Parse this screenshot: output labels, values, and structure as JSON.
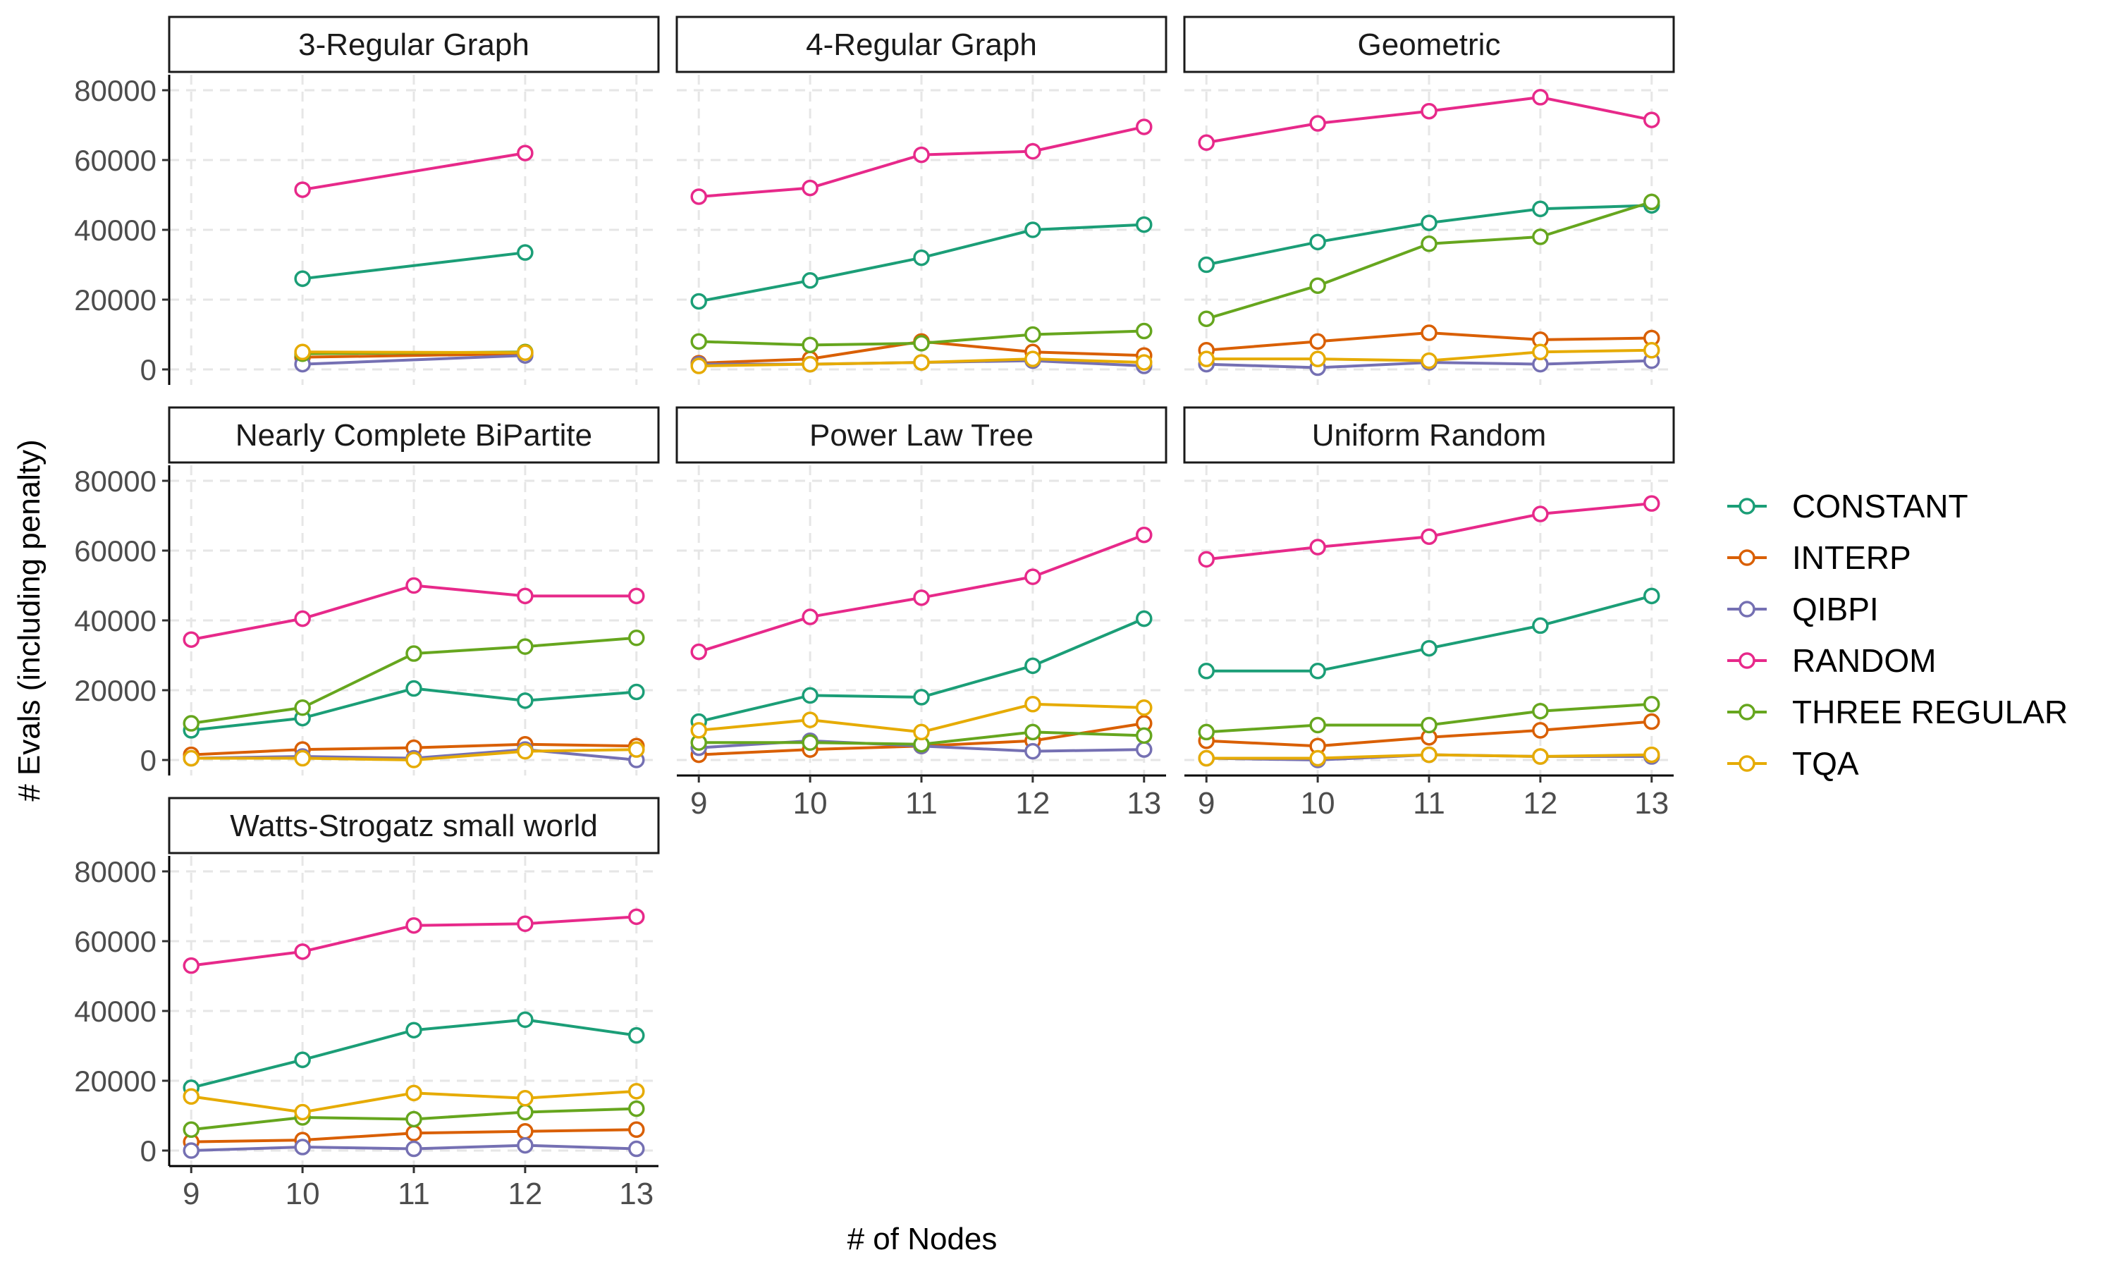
{
  "chart_data": {
    "type": "line",
    "xlabel": "# of Nodes",
    "ylabel": "# Evals (including penalty)",
    "x": [
      9,
      10,
      11,
      12,
      13
    ],
    "ylim": [
      0,
      80000
    ],
    "yticks": [
      0,
      20000,
      40000,
      60000,
      80000
    ],
    "ytick_labels": [
      "0",
      "20000",
      "40000",
      "60000",
      "80000"
    ],
    "xtick_labels": [
      "9",
      "10",
      "11",
      "12",
      "13"
    ],
    "grid": true,
    "legend_position": "right",
    "legend": [
      {
        "name": "CONSTANT",
        "color": "#1b9e77"
      },
      {
        "name": "INTERP",
        "color": "#d95f02"
      },
      {
        "name": "QIBPI",
        "color": "#7570b3"
      },
      {
        "name": "RANDOM",
        "color": "#e7298a"
      },
      {
        "name": "THREE REGULAR",
        "color": "#66a61e"
      },
      {
        "name": "TQA",
        "color": "#e6ab02"
      }
    ],
    "panels": [
      {
        "title": "3-Regular Graph",
        "series": [
          {
            "name": "CONSTANT",
            "values": [
              null,
              26000,
              null,
              33500,
              null
            ]
          },
          {
            "name": "INTERP",
            "values": [
              null,
              3500,
              null,
              4500,
              null
            ]
          },
          {
            "name": "QIBPI",
            "values": [
              null,
              1500,
              null,
              4000,
              null
            ]
          },
          {
            "name": "RANDOM",
            "values": [
              null,
              51500,
              null,
              62000,
              null
            ]
          },
          {
            "name": "THREE REGULAR",
            "values": [
              null,
              4500,
              null,
              5000,
              null
            ]
          },
          {
            "name": "TQA",
            "values": [
              null,
              5000,
              null,
              4800,
              null
            ]
          }
        ]
      },
      {
        "title": "4-Regular Graph",
        "series": [
          {
            "name": "CONSTANT",
            "values": [
              19500,
              25500,
              32000,
              40000,
              41500
            ]
          },
          {
            "name": "INTERP",
            "values": [
              1800,
              3000,
              8000,
              5000,
              4000
            ]
          },
          {
            "name": "QIBPI",
            "values": [
              1500,
              1500,
              2000,
              2500,
              1000
            ]
          },
          {
            "name": "RANDOM",
            "values": [
              49500,
              52000,
              61500,
              62500,
              69500
            ]
          },
          {
            "name": "THREE REGULAR",
            "values": [
              8000,
              7000,
              7500,
              10000,
              11000
            ]
          },
          {
            "name": "TQA",
            "values": [
              1000,
              1500,
              2000,
              3000,
              2000
            ]
          }
        ]
      },
      {
        "title": "Geometric",
        "series": [
          {
            "name": "CONSTANT",
            "values": [
              30000,
              36500,
              42000,
              46000,
              47000
            ]
          },
          {
            "name": "INTERP",
            "values": [
              5500,
              8000,
              10500,
              8500,
              9000
            ]
          },
          {
            "name": "QIBPI",
            "values": [
              1500,
              500,
              2000,
              1500,
              2500
            ]
          },
          {
            "name": "RANDOM",
            "values": [
              65000,
              70500,
              74000,
              78000,
              71500
            ]
          },
          {
            "name": "THREE REGULAR",
            "values": [
              14500,
              24000,
              36000,
              38000,
              48000
            ]
          },
          {
            "name": "TQA",
            "values": [
              3000,
              3000,
              2500,
              5000,
              5500
            ]
          }
        ]
      },
      {
        "title": "Nearly Complete BiPartite",
        "series": [
          {
            "name": "CONSTANT",
            "values": [
              8500,
              12000,
              20500,
              17000,
              19500
            ]
          },
          {
            "name": "INTERP",
            "values": [
              1500,
              3000,
              3500,
              4500,
              4000
            ]
          },
          {
            "name": "QIBPI",
            "values": [
              500,
              1000,
              500,
              3000,
              0
            ]
          },
          {
            "name": "RANDOM",
            "values": [
              34500,
              40500,
              50000,
              47000,
              47000
            ]
          },
          {
            "name": "THREE REGULAR",
            "values": [
              10500,
              15000,
              30500,
              32500,
              35000
            ]
          },
          {
            "name": "TQA",
            "values": [
              500,
              500,
              0,
              2500,
              3000
            ]
          }
        ]
      },
      {
        "title": "Power Law Tree",
        "series": [
          {
            "name": "CONSTANT",
            "values": [
              11000,
              18500,
              18000,
              27000,
              40500
            ]
          },
          {
            "name": "INTERP",
            "values": [
              1500,
              3000,
              4000,
              5500,
              10500
            ]
          },
          {
            "name": "QIBPI",
            "values": [
              3500,
              5500,
              4000,
              2500,
              3000
            ]
          },
          {
            "name": "RANDOM",
            "values": [
              31000,
              41000,
              46500,
              52500,
              64500
            ]
          },
          {
            "name": "THREE REGULAR",
            "values": [
              5000,
              5000,
              4500,
              8000,
              7000
            ]
          },
          {
            "name": "TQA",
            "values": [
              8500,
              11500,
              8000,
              16000,
              15000
            ]
          }
        ]
      },
      {
        "title": "Uniform Random",
        "series": [
          {
            "name": "CONSTANT",
            "values": [
              25500,
              25500,
              32000,
              38500,
              47000
            ]
          },
          {
            "name": "INTERP",
            "values": [
              5500,
              4000,
              6500,
              8500,
              11000
            ]
          },
          {
            "name": "QIBPI",
            "values": [
              500,
              0,
              1500,
              1000,
              1000
            ]
          },
          {
            "name": "RANDOM",
            "values": [
              57500,
              61000,
              64000,
              70500,
              73500
            ]
          },
          {
            "name": "THREE REGULAR",
            "values": [
              8000,
              10000,
              10000,
              14000,
              16000
            ]
          },
          {
            "name": "TQA",
            "values": [
              500,
              500,
              1500,
              1000,
              1500
            ]
          }
        ]
      },
      {
        "title": "Watts-Strogatz small world",
        "series": [
          {
            "name": "CONSTANT",
            "values": [
              18000,
              26000,
              34500,
              37500,
              33000
            ]
          },
          {
            "name": "INTERP",
            "values": [
              2500,
              3000,
              5000,
              5500,
              6000
            ]
          },
          {
            "name": "QIBPI",
            "values": [
              0,
              1000,
              500,
              1500,
              500
            ]
          },
          {
            "name": "RANDOM",
            "values": [
              53000,
              57000,
              64500,
              65000,
              67000
            ]
          },
          {
            "name": "THREE REGULAR",
            "values": [
              6000,
              9500,
              9000,
              11000,
              12000
            ]
          },
          {
            "name": "TQA",
            "values": [
              15500,
              11000,
              16500,
              15000,
              17000
            ]
          }
        ]
      }
    ]
  }
}
